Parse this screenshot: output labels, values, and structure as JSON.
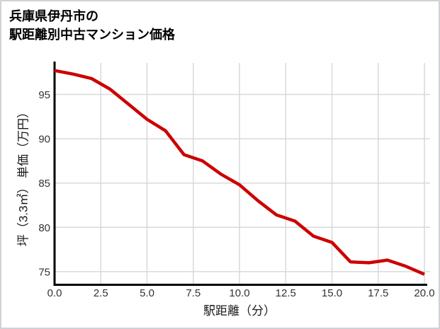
{
  "page": {
    "title_line1": "兵庫県伊丹市の",
    "title_line2": "駅距離別中古マンション価格"
  },
  "chart_data": {
    "type": "line",
    "title": "兵庫県伊丹市の 駅距離別中古マンション価格",
    "xlabel": "駅距離（分）",
    "ylabel": "坪（3.3㎡） 単価（万円）",
    "x": [
      0,
      1,
      2,
      3,
      4,
      5,
      6,
      7,
      8,
      9,
      10,
      11,
      12,
      13,
      14,
      15,
      16,
      17,
      18,
      19,
      20
    ],
    "values": [
      97.7,
      97.3,
      96.8,
      95.6,
      93.9,
      92.2,
      90.9,
      88.2,
      87.5,
      86.0,
      84.8,
      83.0,
      81.4,
      80.7,
      79.0,
      78.3,
      76.1,
      76.0,
      76.3,
      75.6,
      74.7
    ],
    "x_ticks": [
      0.0,
      2.5,
      5.0,
      7.5,
      10.0,
      12.5,
      15.0,
      17.5,
      20.0
    ],
    "x_tick_labels": [
      "0.0",
      "2.5",
      "5.0",
      "7.5",
      "10.0",
      "12.5",
      "15.0",
      "17.5",
      "20.0"
    ],
    "y_ticks": [
      75,
      80,
      85,
      90,
      95
    ],
    "xlim": [
      0,
      20
    ],
    "ylim": [
      73.5,
      98.5
    ],
    "grid": true,
    "legend": "none",
    "line_color": "#cc0000",
    "grid_color": "#d9d9d9",
    "spine_color": "#000000",
    "tick_label_color": "#333333"
  }
}
